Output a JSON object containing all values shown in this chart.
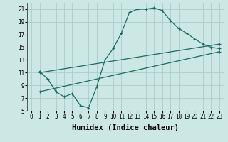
{
  "xlabel": "Humidex (Indice chaleur)",
  "bg_color": "#cce8e5",
  "grid_color": "#aaccca",
  "line_color": "#1a6b63",
  "xlim": [
    -0.5,
    23.5
  ],
  "ylim": [
    5,
    22
  ],
  "xticks": [
    0,
    1,
    2,
    3,
    4,
    5,
    6,
    7,
    8,
    9,
    10,
    11,
    12,
    13,
    14,
    15,
    16,
    17,
    18,
    19,
    20,
    21,
    22,
    23
  ],
  "yticks": [
    5,
    7,
    9,
    11,
    13,
    15,
    17,
    19,
    21
  ],
  "line1_x": [
    1,
    2,
    3,
    4,
    5,
    6,
    7,
    8,
    9,
    10,
    11,
    12,
    13,
    14,
    15,
    16,
    17,
    18,
    19,
    20,
    21,
    22,
    23
  ],
  "line1_y": [
    11.2,
    10.0,
    8.0,
    7.2,
    7.7,
    5.8,
    5.5,
    8.8,
    13.0,
    14.8,
    17.2,
    20.5,
    21.0,
    21.0,
    21.2,
    20.8,
    19.2,
    18.0,
    17.2,
    16.3,
    15.5,
    15.0,
    14.8
  ],
  "line2_x": [
    1,
    23
  ],
  "line2_y": [
    11.0,
    15.5
  ],
  "line3_x": [
    1,
    23
  ],
  "line3_y": [
    8.0,
    14.3
  ],
  "marker": "+",
  "markersize": 3.5,
  "linewidth": 0.9,
  "tick_fontsize": 5.5,
  "xlabel_fontsize": 7.5
}
